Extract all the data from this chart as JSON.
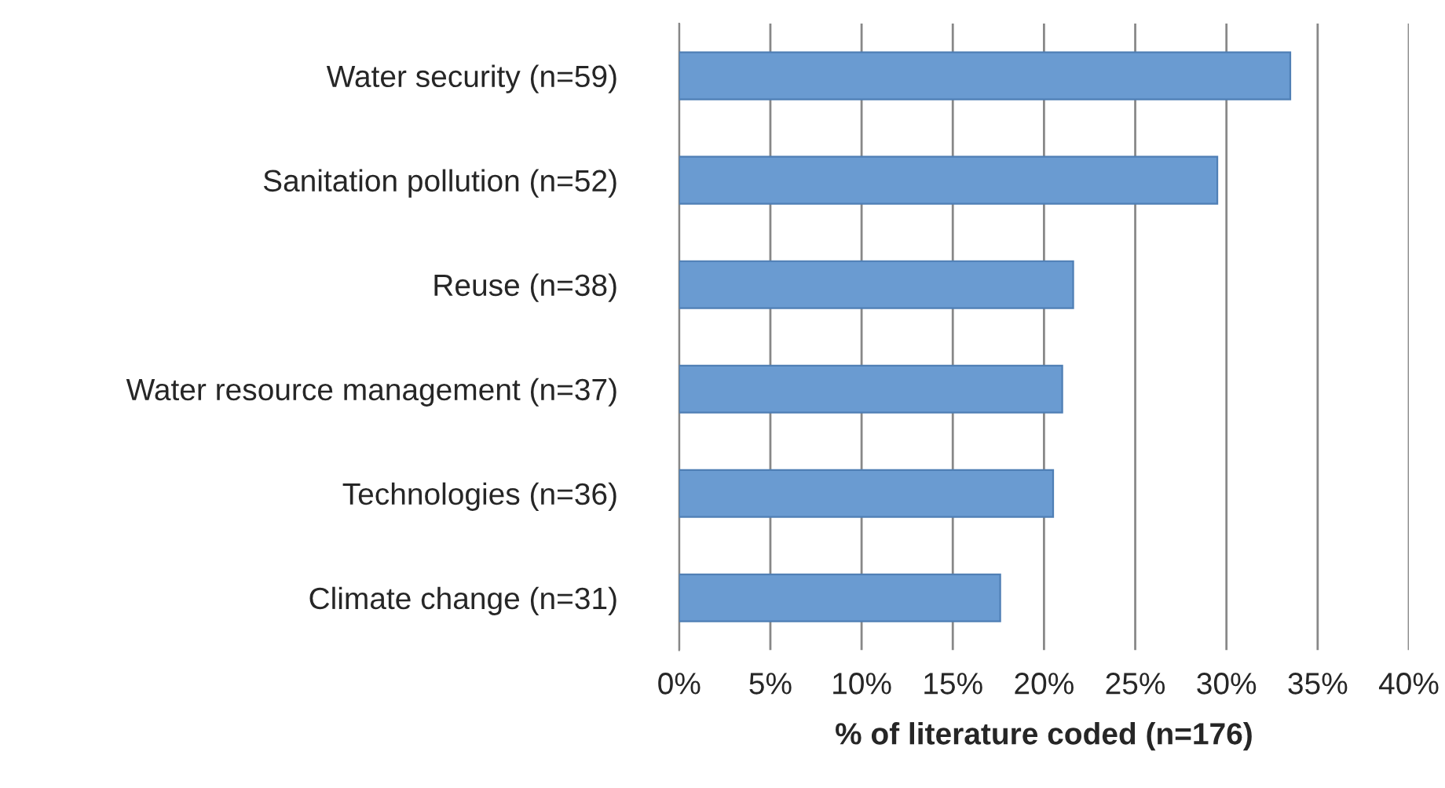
{
  "chart_data": {
    "type": "bar",
    "orientation": "horizontal",
    "categories": [
      "Water security (n=59)",
      "Sanitation pollution (n=52)",
      "Reuse (n=38)",
      "Water resource management (n=37)",
      "Technologies (n=36)",
      "Climate change (n=31)"
    ],
    "values": [
      33.5,
      29.5,
      21.6,
      21.0,
      20.5,
      17.6
    ],
    "color": "#6a9bd1",
    "xlabel": "% of literature coded (n=176)",
    "xlim": [
      0,
      40
    ],
    "xticks": [
      {
        "value": 0,
        "label": "0%"
      },
      {
        "value": 5,
        "label": "5%"
      },
      {
        "value": 10,
        "label": "10%"
      },
      {
        "value": 15,
        "label": "15%"
      },
      {
        "value": 20,
        "label": "20%"
      },
      {
        "value": 25,
        "label": "25%"
      },
      {
        "value": 30,
        "label": "30%"
      },
      {
        "value": 35,
        "label": "35%"
      },
      {
        "value": 40,
        "label": "40%"
      }
    ],
    "grid": "x",
    "legend": false
  }
}
